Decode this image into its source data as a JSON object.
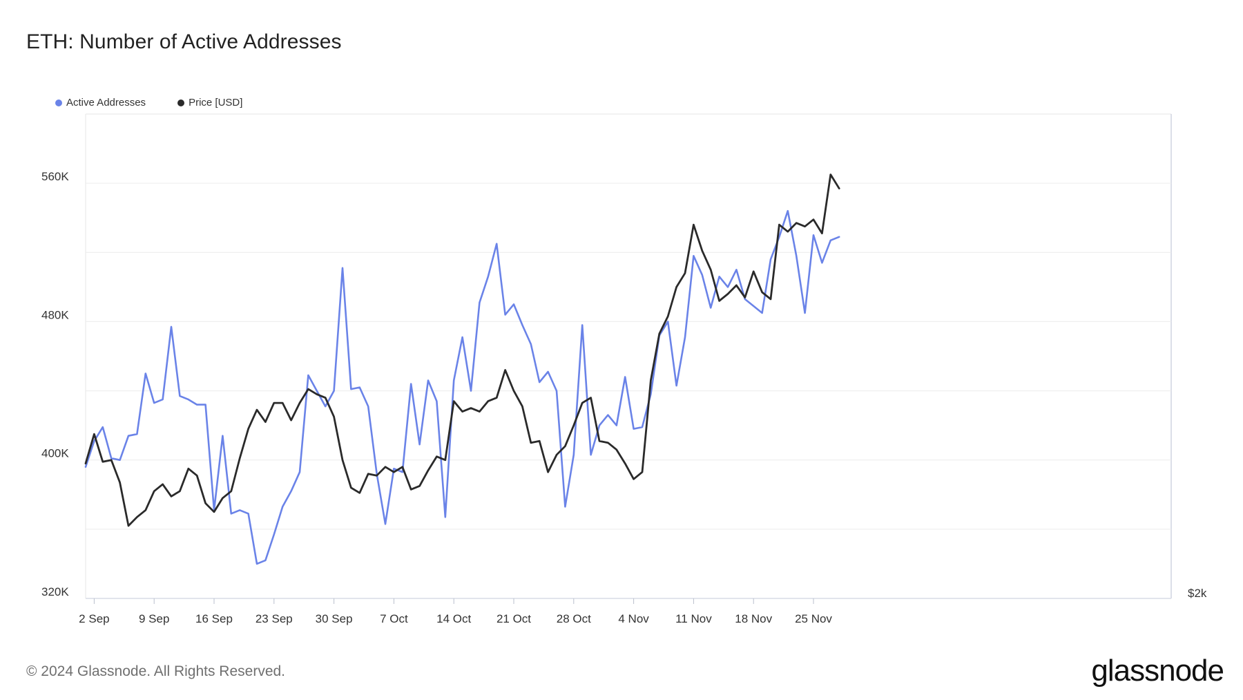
{
  "chart_data": {
    "type": "line",
    "title": "ETH: Number of Active Addresses",
    "xlabel": "",
    "ylabel": "",
    "ylim": [
      320000,
      600000
    ],
    "y_ticks": [
      {
        "value": 320000,
        "label": "320K"
      },
      {
        "value": 400000,
        "label": "400K"
      },
      {
        "value": 480000,
        "label": "480K"
      },
      {
        "value": 560000,
        "label": "560K"
      }
    ],
    "y_grid_values": [
      360000,
      440000,
      520000
    ],
    "right_axis_label": "$2k",
    "x_start": "2024-09-01",
    "x_ticks": [
      {
        "day": 1,
        "label": "2 Sep"
      },
      {
        "day": 8,
        "label": "9 Sep"
      },
      {
        "day": 15,
        "label": "16 Sep"
      },
      {
        "day": 22,
        "label": "23 Sep"
      },
      {
        "day": 29,
        "label": "30 Sep"
      },
      {
        "day": 36,
        "label": "7 Oct"
      },
      {
        "day": 43,
        "label": "14 Oct"
      },
      {
        "day": 50,
        "label": "21 Oct"
      },
      {
        "day": 57,
        "label": "28 Oct"
      },
      {
        "day": 64,
        "label": "4 Nov"
      },
      {
        "day": 71,
        "label": "11 Nov"
      },
      {
        "day": 78,
        "label": "18 Nov"
      },
      {
        "day": 85,
        "label": "25 Nov"
      }
    ],
    "series": [
      {
        "name": "Active Addresses",
        "color": "#6a83e8",
        "values": [
          396000,
          411000,
          419000,
          401000,
          400000,
          414000,
          415000,
          450000,
          433000,
          435000,
          477000,
          437000,
          435000,
          432000,
          432000,
          371000,
          414000,
          369000,
          371000,
          369000,
          340000,
          342000,
          357000,
          373000,
          382000,
          393000,
          449000,
          440000,
          431000,
          440000,
          511000,
          441000,
          442000,
          431000,
          392000,
          363000,
          395000,
          393000,
          444000,
          409000,
          446000,
          434000,
          367000,
          446000,
          471000,
          440000,
          491000,
          506000,
          525000,
          484000,
          490000,
          478000,
          467000,
          445000,
          451000,
          440000,
          373000,
          403000,
          478000,
          403000,
          420000,
          426000,
          420000,
          448000,
          418000,
          419000,
          438000,
          472000,
          480000,
          443000,
          471000,
          518000,
          507000,
          488000,
          506000,
          500000,
          510000,
          493000,
          489000,
          485000,
          516000,
          529000,
          544000,
          518000,
          485000,
          530000,
          514000,
          527000,
          529000
        ]
      },
      {
        "name": "Price [USD]",
        "color": "#2a2a2a",
        "values": [
          398000,
          415000,
          399000,
          400000,
          387000,
          362000,
          367000,
          371000,
          382000,
          386000,
          379000,
          382000,
          395000,
          391000,
          375000,
          370000,
          378000,
          382000,
          401000,
          418000,
          429000,
          422000,
          433000,
          433000,
          423000,
          433000,
          441000,
          438000,
          436000,
          425000,
          400000,
          384000,
          381000,
          392000,
          391000,
          396000,
          393000,
          396000,
          383000,
          385000,
          394000,
          402000,
          400000,
          434000,
          428000,
          430000,
          428000,
          434000,
          436000,
          452000,
          440000,
          431000,
          410000,
          411000,
          393000,
          403000,
          408000,
          420000,
          433000,
          436000,
          411000,
          410000,
          406000,
          398000,
          389000,
          393000,
          446000,
          473000,
          483000,
          500000,
          508000,
          536000,
          521000,
          510000,
          492000,
          496000,
          501000,
          494000,
          509000,
          497000,
          493000,
          536000,
          532000,
          537000,
          535000,
          539000,
          531000,
          565000,
          557000
        ]
      }
    ]
  },
  "legend": {
    "active_label": "Active Addresses",
    "price_label": "Price [USD]"
  },
  "footer": {
    "copyright": "© 2024 Glassnode. All Rights Reserved.",
    "brand": "glassnode"
  }
}
